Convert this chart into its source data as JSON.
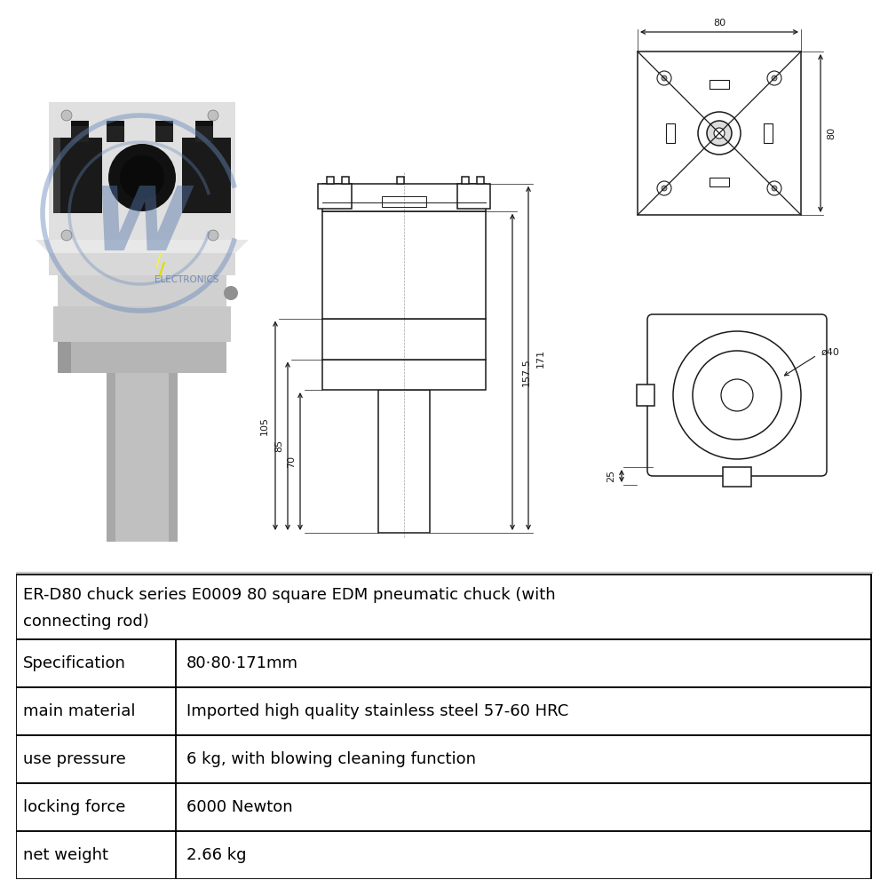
{
  "bg_color": "#ffffff",
  "title_text": "ER-D80 chuck series E0009 80 square EDM pneumatic chuck (with\nconnecting rod)",
  "table_headers": [
    "Specification",
    "main material",
    "use pressure",
    "locking force",
    "net weight"
  ],
  "table_values": [
    "80·80·171mm",
    "Imported high quality stainless steel 57-60 HRC",
    "6 kg, with blowing cleaning function",
    "6000 Newton",
    "2.66 kg"
  ],
  "line_color": "#1a1a1a",
  "dim_color": "#1a1a1a",
  "table_line_color": "#000000",
  "logo_color": "#5577aa",
  "logo_ring_color": "#6688bb",
  "font_size_table": 13,
  "font_size_dim": 8
}
